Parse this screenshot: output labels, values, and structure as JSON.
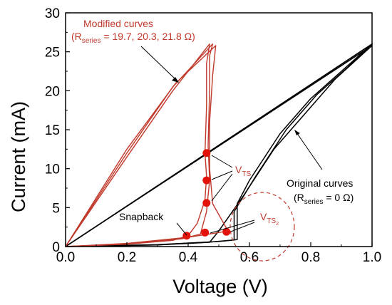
{
  "chart_data": {
    "type": "line",
    "xlabel": "Voltage (V)",
    "ylabel": "Current (mA)",
    "xlim": [
      0.0,
      1.0
    ],
    "ylim": [
      0,
      30
    ],
    "x_ticks": [
      "0.0",
      "0.2",
      "0.4",
      "0.6",
      "0.8",
      "1.0"
    ],
    "y_ticks": [
      "0",
      "5",
      "10",
      "15",
      "20",
      "25",
      "30"
    ],
    "grid": false,
    "colors": {
      "original": "#000000",
      "modified": "#c0392b",
      "marker": "#e3120b"
    },
    "series": [
      {
        "group": "original",
        "color": "#000000",
        "points": [
          [
            0.0,
            0.0
          ],
          [
            0.3,
            0.25
          ],
          [
            0.5,
            0.65
          ],
          [
            0.56,
            0.9
          ],
          [
            0.56,
            5.5
          ],
          [
            0.6,
            8.5
          ],
          [
            0.7,
            14.5
          ],
          [
            0.8,
            19.0
          ],
          [
            0.9,
            22.5
          ],
          [
            1.0,
            26.0
          ],
          [
            0.0,
            0.0
          ]
        ]
      },
      {
        "group": "original",
        "color": "#000000",
        "points": [
          [
            0.0,
            0.0
          ],
          [
            0.3,
            0.22
          ],
          [
            0.48,
            0.6
          ],
          [
            0.55,
            0.85
          ],
          [
            0.55,
            4.5
          ],
          [
            0.62,
            9.0
          ],
          [
            0.72,
            15.0
          ],
          [
            0.82,
            19.5
          ],
          [
            0.92,
            23.0
          ],
          [
            1.0,
            26.0
          ],
          [
            0.0,
            0.0
          ]
        ]
      },
      {
        "group": "original",
        "color": "#000000",
        "points": [
          [
            0.0,
            0.0
          ],
          [
            0.3,
            0.2
          ],
          [
            0.47,
            0.55
          ],
          [
            0.5,
            2.0
          ],
          [
            0.58,
            6.5
          ],
          [
            0.68,
            12.5
          ],
          [
            0.78,
            17.0
          ],
          [
            0.88,
            21.5
          ],
          [
            1.0,
            25.8
          ],
          [
            0.0,
            0.0
          ]
        ]
      },
      {
        "group": "modified",
        "color": "#c0392b",
        "points": [
          [
            0.0,
            0.0
          ],
          [
            0.2,
            0.3
          ],
          [
            0.35,
            0.8
          ],
          [
            0.4,
            1.4
          ],
          [
            0.43,
            3.0
          ],
          [
            0.455,
            6.0
          ],
          [
            0.46,
            9.0
          ],
          [
            0.455,
            12.0
          ],
          [
            0.46,
            18.0
          ],
          [
            0.46,
            23.5
          ],
          [
            0.47,
            26.0
          ],
          [
            0.35,
            20.0
          ],
          [
            0.2,
            11.5
          ],
          [
            0.0,
            0.0
          ]
        ]
      },
      {
        "group": "modified",
        "color": "#c0392b",
        "points": [
          [
            0.0,
            0.0
          ],
          [
            0.2,
            0.35
          ],
          [
            0.38,
            1.0
          ],
          [
            0.44,
            1.6
          ],
          [
            0.46,
            4.5
          ],
          [
            0.47,
            8.5
          ],
          [
            0.465,
            13.0
          ],
          [
            0.47,
            20.0
          ],
          [
            0.47,
            24.5
          ],
          [
            0.48,
            26.0
          ],
          [
            0.35,
            20.5
          ],
          [
            0.2,
            12.0
          ],
          [
            0.0,
            0.0
          ]
        ]
      },
      {
        "group": "modified",
        "color": "#c0392b",
        "points": [
          [
            0.0,
            0.0
          ],
          [
            0.2,
            0.4
          ],
          [
            0.4,
            1.2
          ],
          [
            0.5,
            1.8
          ],
          [
            0.53,
            2.0
          ],
          [
            0.48,
            5.5
          ],
          [
            0.47,
            10.0
          ],
          [
            0.47,
            16.0
          ],
          [
            0.48,
            22.0
          ],
          [
            0.49,
            25.8
          ],
          [
            0.36,
            21.0
          ],
          [
            0.2,
            12.5
          ],
          [
            0.0,
            0.0
          ]
        ]
      }
    ],
    "markers": [
      {
        "x": 0.46,
        "y": 12.0
      },
      {
        "x": 0.46,
        "y": 8.5
      },
      {
        "x": 0.46,
        "y": 5.6
      },
      {
        "x": 0.395,
        "y": 1.4
      },
      {
        "x": 0.455,
        "y": 1.8
      },
      {
        "x": 0.525,
        "y": 1.9
      }
    ],
    "annotations": {
      "modified_title": "Modified curves",
      "modified_params_prefix": "(R",
      "modified_params_sub": "series",
      "modified_params_suffix": " = 19.7, 20.3, 21.8 Ω)",
      "vts_main": "V",
      "vts_main_sub": "TS",
      "snapback": "Snapback",
      "vts2_main": "V",
      "vts2_sub": "TS",
      "vts2_subsub": "2",
      "original_title": "Original curves",
      "original_params_prefix": "(R",
      "original_params_sub": "series",
      "original_params_suffix": " = 0 Ω)"
    }
  }
}
